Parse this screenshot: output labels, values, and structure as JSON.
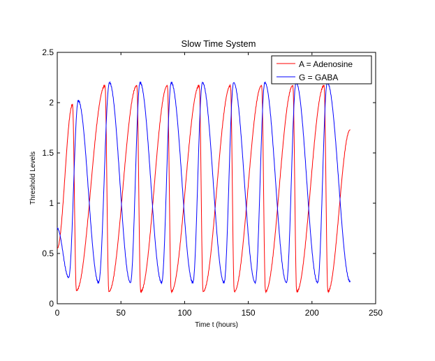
{
  "chart_data": {
    "type": "line",
    "title": "Slow Time System",
    "xlabel": "Time t (hours)",
    "ylabel": "Threshold Levels",
    "xlim": [
      0,
      250
    ],
    "ylim": [
      0,
      2.5
    ],
    "xticks": [
      0,
      50,
      100,
      150,
      200,
      250
    ],
    "yticks": [
      0,
      0.5,
      1,
      1.5,
      2,
      2.5
    ],
    "xtick_labels": [
      "0",
      "50",
      "100",
      "150",
      "200",
      "250"
    ],
    "ytick_labels": [
      "0",
      "0.5",
      "1",
      "1.5",
      "2",
      "2.5"
    ],
    "grid": false,
    "legend_position": "top-right",
    "series": [
      {
        "name": "A = Adenosine",
        "color": "#ff0000",
        "x": [
          0,
          12,
          15,
          37.5,
          40.5,
          62.5,
          65.5,
          86.5,
          89.5,
          111.5,
          114.5,
          136,
          139,
          160.5,
          163.5,
          185,
          188,
          209.5,
          212.5,
          230
        ],
        "y": [
          0.55,
          1.98,
          0.13,
          2.17,
          0.12,
          2.17,
          0.12,
          2.17,
          0.12,
          2.17,
          0.12,
          2.17,
          0.12,
          2.17,
          0.12,
          2.17,
          0.12,
          2.17,
          0.12,
          1.73
        ]
      },
      {
        "name": "G = GABA",
        "color": "#0000ff",
        "x": [
          0,
          9,
          16.5,
          32.5,
          41,
          57.5,
          65,
          82,
          89.5,
          106.5,
          114,
          131,
          138.5,
          155.5,
          163,
          180,
          187.5,
          204.5,
          212,
          230
        ],
        "y": [
          0.75,
          0.26,
          2.02,
          0.21,
          2.2,
          0.21,
          2.2,
          0.21,
          2.2,
          0.21,
          2.2,
          0.21,
          2.2,
          0.21,
          2.2,
          0.21,
          2.2,
          0.21,
          2.2,
          0.22
        ]
      }
    ]
  }
}
